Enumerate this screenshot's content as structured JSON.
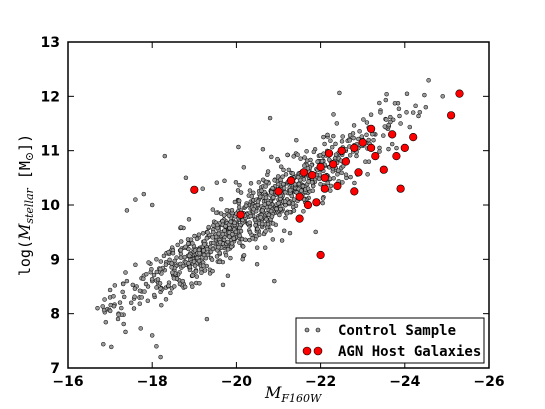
{
  "chart_data": {
    "type": "scatter",
    "title": "",
    "xlabel_main": "M",
    "xlabel_sub": "F160W",
    "ylabel_parts": {
      "prefix": "log(",
      "var": "M",
      "sub": "stellar",
      "unit": "[M",
      "unit_sub": "⊙",
      "suffix": "])"
    },
    "xlim": [
      -16,
      -26
    ],
    "ylim": [
      7,
      13
    ],
    "x_ticks": [
      -16,
      -18,
      -20,
      -22,
      -24,
      -26
    ],
    "x_tick_labels": [
      "−16",
      "−18",
      "−20",
      "−22",
      "−24",
      "−26"
    ],
    "y_ticks": [
      7,
      8,
      9,
      10,
      11,
      12,
      13
    ],
    "y_tick_labels": [
      "7",
      "8",
      "9",
      "10",
      "11",
      "12",
      "13"
    ],
    "grid": false,
    "legend_placement": "bottom-right",
    "series": [
      {
        "name": "Control Sample",
        "color": "#9a9a9a",
        "marker": "small-circle",
        "x_center": -20.4,
        "points": [
          [
            -16.7,
            8.1
          ],
          [
            -17.0,
            8.3
          ],
          [
            -17.2,
            8.0
          ],
          [
            -17.3,
            8.4
          ],
          [
            -17.4,
            8.6
          ],
          [
            -17.5,
            8.2
          ],
          [
            -17.6,
            8.9
          ],
          [
            -17.7,
            8.3
          ],
          [
            -17.8,
            8.7
          ],
          [
            -17.9,
            8.5
          ],
          [
            -18.0,
            8.6
          ],
          [
            -18.0,
            7.6
          ],
          [
            -18.1,
            9.0
          ],
          [
            -18.2,
            8.4
          ],
          [
            -18.3,
            8.8
          ],
          [
            -18.4,
            9.1
          ],
          [
            -18.5,
            8.7
          ],
          [
            -18.6,
            8.9
          ],
          [
            -18.7,
            9.2
          ],
          [
            -18.8,
            8.9
          ],
          [
            -18.9,
            9.3
          ],
          [
            -19.0,
            9.0
          ],
          [
            -19.1,
            9.4
          ],
          [
            -19.2,
            9.1
          ],
          [
            -19.3,
            9.5
          ],
          [
            -19.4,
            9.3
          ],
          [
            -19.5,
            9.6
          ],
          [
            -19.6,
            9.2
          ],
          [
            -19.7,
            9.7
          ],
          [
            -19.8,
            9.5
          ],
          [
            -19.9,
            9.8
          ],
          [
            -20.0,
            9.6
          ],
          [
            -20.1,
            9.9
          ],
          [
            -20.2,
            9.7
          ],
          [
            -20.3,
            10.0
          ],
          [
            -20.4,
            9.8
          ],
          [
            -20.5,
            10.1
          ],
          [
            -20.6,
            9.9
          ],
          [
            -20.7,
            10.2
          ],
          [
            -20.8,
            10.0
          ],
          [
            -20.9,
            10.3
          ],
          [
            -21.0,
            10.1
          ],
          [
            -21.2,
            10.4
          ],
          [
            -21.4,
            10.3
          ],
          [
            -21.6,
            10.6
          ],
          [
            -21.8,
            10.5
          ],
          [
            -22.0,
            10.8
          ],
          [
            -22.2,
            10.7
          ],
          [
            -22.4,
            10.9
          ],
          [
            -22.6,
            11.0
          ],
          [
            -22.8,
            11.1
          ],
          [
            -23.0,
            11.2
          ],
          [
            -23.3,
            11.3
          ],
          [
            -23.6,
            11.4
          ],
          [
            -23.9,
            11.5
          ],
          [
            -24.2,
            11.7
          ],
          [
            -24.5,
            11.8
          ],
          [
            -24.9,
            12.0
          ],
          [
            -17.4,
            9.9
          ],
          [
            -17.6,
            10.1
          ],
          [
            -18.3,
            10.9
          ],
          [
            -18.8,
            10.5
          ],
          [
            -19.2,
            10.3
          ],
          [
            -20.8,
            11.6
          ],
          [
            -18.2,
            7.2
          ],
          [
            -18.1,
            7.4
          ],
          [
            -19.3,
            7.9
          ],
          [
            -20.9,
            8.6
          ],
          [
            -17.8,
            10.2
          ],
          [
            -18.0,
            10.0
          ]
        ]
      },
      {
        "name": "AGN Host Galaxies",
        "color": "#ff0000",
        "marker": "circle",
        "points": [
          [
            -19.0,
            10.28
          ],
          [
            -20.1,
            9.82
          ],
          [
            -21.0,
            10.25
          ],
          [
            -21.3,
            10.45
          ],
          [
            -21.5,
            10.15
          ],
          [
            -21.6,
            10.6
          ],
          [
            -21.7,
            10.0
          ],
          [
            -21.8,
            10.55
          ],
          [
            -21.9,
            10.05
          ],
          [
            -22.0,
            9.08
          ],
          [
            -22.0,
            10.7
          ],
          [
            -22.1,
            10.3
          ],
          [
            -22.2,
            10.95
          ],
          [
            -22.3,
            10.75
          ],
          [
            -22.4,
            10.35
          ],
          [
            -22.5,
            11.0
          ],
          [
            -22.6,
            10.8
          ],
          [
            -22.8,
            10.25
          ],
          [
            -22.9,
            10.6
          ],
          [
            -23.0,
            11.15
          ],
          [
            -23.2,
            11.05
          ],
          [
            -23.3,
            10.9
          ],
          [
            -23.5,
            10.65
          ],
          [
            -23.7,
            11.3
          ],
          [
            -23.8,
            10.9
          ],
          [
            -23.9,
            10.3
          ],
          [
            -24.0,
            11.05
          ],
          [
            -24.2,
            11.25
          ],
          [
            -25.1,
            11.65
          ],
          [
            -25.3,
            12.05
          ],
          [
            -21.5,
            9.75
          ],
          [
            -22.1,
            10.5
          ],
          [
            -22.8,
            11.05
          ],
          [
            -23.2,
            11.4
          ]
        ]
      }
    ]
  }
}
